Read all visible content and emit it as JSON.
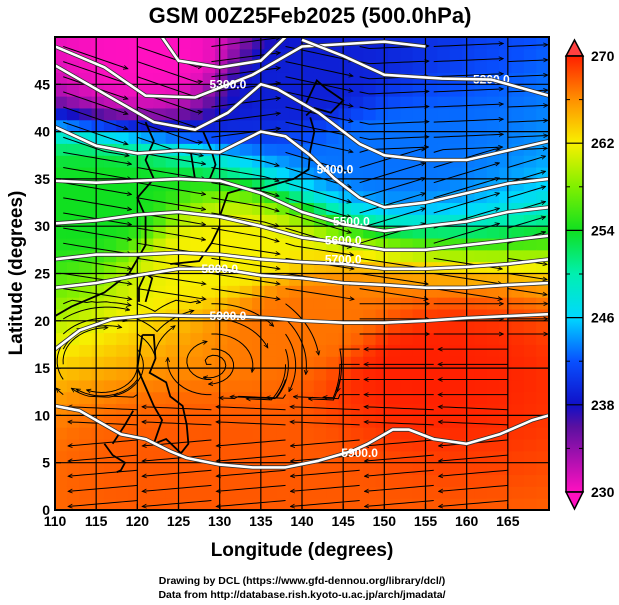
{
  "chart_data": {
    "type": "heatmap",
    "title": "GSM 00Z25Feb2025 (500.0hPa)",
    "xlabel": "Longitude (degrees)",
    "ylabel": "Latitude  (degrees)",
    "xlim": [
      110,
      170
    ],
    "ylim": [
      0,
      50
    ],
    "x_ticks": [
      110,
      115,
      120,
      125,
      130,
      135,
      140,
      145,
      150,
      155,
      160,
      165
    ],
    "y_ticks": [
      0,
      5,
      10,
      15,
      20,
      25,
      30,
      35,
      40,
      45
    ],
    "grid": true,
    "grid_spacing_deg": 5,
    "shaded_field": {
      "description": "temperature (K)",
      "colorbar_ticks": [
        230,
        238,
        246,
        254,
        262,
        270
      ],
      "colorbar_range": [
        230,
        270
      ],
      "colorbar_extend": "both",
      "colorbar_placement": "right",
      "colormap_stops": [
        {
          "value": 230,
          "color": "#ff10c0"
        },
        {
          "value": 236,
          "color": "#5a10a0"
        },
        {
          "value": 238,
          "color": "#1010c8"
        },
        {
          "value": 242,
          "color": "#0850ff"
        },
        {
          "value": 246,
          "color": "#00d8ff"
        },
        {
          "value": 250,
          "color": "#00f0b0"
        },
        {
          "value": 254,
          "color": "#10e020"
        },
        {
          "value": 258,
          "color": "#80f000"
        },
        {
          "value": 262,
          "color": "#f8f000"
        },
        {
          "value": 266,
          "color": "#ff9000"
        },
        {
          "value": 270,
          "color": "#ff2000"
        }
      ],
      "extend_low_color": "#ff10c0",
      "extend_high_color": "#ff4040",
      "approx_field": [
        {
          "lat": 48,
          "lon": 122,
          "value": 230
        },
        {
          "lat": 45,
          "lon": 140,
          "value": 239
        },
        {
          "lat": 38,
          "lon": 150,
          "value": 243
        },
        {
          "lat": 32,
          "lon": 115,
          "value": 254
        },
        {
          "lat": 27,
          "lon": 130,
          "value": 262
        },
        {
          "lat": 20,
          "lon": 140,
          "value": 267
        },
        {
          "lat": 15,
          "lon": 155,
          "value": 270
        },
        {
          "lat": 5,
          "lon": 130,
          "value": 268
        }
      ]
    },
    "contour_field": {
      "description": "geopotential height (m)",
      "interval": 100,
      "color": "#ffffff",
      "lines": [
        {
          "level": 5100,
          "label": "",
          "points": [
            [
              123,
              50
            ],
            [
              125,
              47.5
            ],
            [
              130,
              46.8
            ],
            [
              135,
              47.5
            ],
            [
              138,
              50
            ]
          ]
        },
        {
          "level": 5200,
          "label": "5200.0",
          "label_at": [
            163,
            45.5
          ],
          "points": [
            [
              110,
              49
            ],
            [
              116,
              46.8
            ],
            [
              121,
              43.8
            ],
            [
              127,
              43.6
            ],
            [
              134,
              46
            ],
            [
              140,
              49
            ],
            [
              150,
              49.5
            ],
            [
              155,
              49
            ]
          ]
        },
        {
          "level": 5200,
          "label": "5200.0",
          "points": [
            [
              140,
              49.7
            ],
            [
              145,
              48
            ],
            [
              150,
              46
            ],
            [
              157,
              45.6
            ],
            [
              163,
              45.5
            ],
            [
              170,
              43.8
            ]
          ]
        },
        {
          "level": 5300,
          "label": "5300.0",
          "label_at": [
            131,
            45
          ],
          "points": [
            [
              110,
              47
            ],
            [
              114,
              45
            ],
            [
              118,
              43
            ],
            [
              122,
              41
            ],
            [
              127,
              40.2
            ],
            [
              131,
              42
            ],
            [
              135,
              45
            ],
            [
              137,
              44.5
            ],
            [
              142,
              42
            ],
            [
              147,
              38.7
            ],
            [
              150,
              37.5
            ],
            [
              155,
              37
            ],
            [
              160,
              37
            ],
            [
              165,
              38
            ],
            [
              170,
              39
            ]
          ]
        },
        {
          "level": 5400,
          "label": "5400.0",
          "label_at": [
            144,
            36
          ],
          "points": [
            [
              110,
              40.5
            ],
            [
              115,
              38.5
            ],
            [
              120,
              37.7
            ],
            [
              125,
              38
            ],
            [
              130,
              37.8
            ],
            [
              135,
              40
            ],
            [
              138,
              39.5
            ],
            [
              141,
              37.5
            ],
            [
              144,
              35
            ],
            [
              147,
              33
            ],
            [
              150,
              32
            ],
            [
              155,
              32.5
            ],
            [
              160,
              33.5
            ],
            [
              165,
              34.5
            ],
            [
              170,
              35
            ]
          ]
        },
        {
          "level": 5500,
          "label": "5500.0",
          "label_at": [
            146,
            30.5
          ],
          "points": [
            [
              110,
              34.8
            ],
            [
              115,
              34.6
            ],
            [
              120,
              34.8
            ],
            [
              125,
              35
            ],
            [
              130,
              34.8
            ],
            [
              135,
              33.5
            ],
            [
              140,
              31.5
            ],
            [
              145,
              30.2
            ],
            [
              150,
              29.5
            ],
            [
              155,
              30
            ],
            [
              160,
              30.5
            ],
            [
              165,
              31.5
            ],
            [
              170,
              32
            ]
          ]
        },
        {
          "level": 5600,
          "label": "5600.0",
          "label_at": [
            145,
            28.5
          ],
          "points": [
            [
              110,
              30.3
            ],
            [
              115,
              30.6
            ],
            [
              120,
              31.2
            ],
            [
              125,
              31.5
            ],
            [
              130,
              31
            ],
            [
              135,
              30
            ],
            [
              140,
              28.8
            ],
            [
              145,
              28.2
            ],
            [
              150,
              27.5
            ],
            [
              155,
              27.5
            ],
            [
              160,
              28
            ],
            [
              165,
              28.5
            ],
            [
              170,
              29
            ]
          ]
        },
        {
          "level": 5700,
          "label": "5700.0",
          "label_at": [
            145,
            26.5
          ],
          "points": [
            [
              110,
              26.5
            ],
            [
              115,
              27
            ],
            [
              120,
              27
            ],
            [
              125,
              27.2
            ],
            [
              130,
              27
            ],
            [
              135,
              26.5
            ],
            [
              140,
              26.2
            ],
            [
              145,
              26
            ],
            [
              150,
              25.5
            ],
            [
              155,
              25.5
            ],
            [
              160,
              25.7
            ],
            [
              165,
              26
            ],
            [
              170,
              26.5
            ]
          ]
        },
        {
          "level": 5800,
          "label": "5800.0",
          "label_at": [
            130,
            25.5
          ],
          "points": [
            [
              110,
              23.5
            ],
            [
              115,
              24
            ],
            [
              120,
              24.8
            ],
            [
              125,
              25.5
            ],
            [
              130,
              25.5
            ],
            [
              135,
              24.8
            ],
            [
              140,
              24.5
            ],
            [
              145,
              24
            ],
            [
              150,
              23.8
            ],
            [
              155,
              23.5
            ],
            [
              160,
              23.5
            ],
            [
              165,
              23.8
            ],
            [
              170,
              24
            ]
          ]
        },
        {
          "level": 5900,
          "label": "5900.0",
          "label_at": [
            131,
            20.5
          ],
          "points": [
            [
              110,
              17
            ],
            [
              113,
              19
            ],
            [
              117,
              20.2
            ],
            [
              122,
              20.6
            ],
            [
              127,
              20.5
            ],
            [
              131,
              20.5
            ],
            [
              136,
              20.3
            ],
            [
              140,
              20
            ],
            [
              145,
              19.8
            ],
            [
              150,
              19.8
            ],
            [
              155,
              20
            ],
            [
              160,
              20.3
            ],
            [
              165,
              20.5
            ],
            [
              170,
              20.7
            ]
          ]
        },
        {
          "level": 5900,
          "label": "5900.0",
          "label_at": [
            147,
            6
          ],
          "points": [
            [
              110,
              11
            ],
            [
              113,
              10.5
            ],
            [
              116,
              9
            ],
            [
              118,
              8
            ],
            [
              121,
              7.5
            ],
            [
              124,
              6.2
            ],
            [
              126,
              5.5
            ],
            [
              130,
              4.8
            ],
            [
              134,
              4.5
            ],
            [
              138,
              4.5
            ],
            [
              142,
              5.2
            ],
            [
              146,
              6.2
            ],
            [
              148,
              7
            ],
            [
              151,
              8.5
            ],
            [
              153,
              8.5
            ],
            [
              156,
              7.5
            ],
            [
              160,
              7
            ],
            [
              164,
              8
            ],
            [
              168,
              9.5
            ],
            [
              170,
              10
            ]
          ]
        }
      ]
    },
    "vector_field": {
      "description": "streamlines of horizontal wind",
      "style": "black streamlines with arrowheads",
      "features": [
        {
          "type": "westerly jet",
          "lat_range": [
            25,
            50
          ]
        },
        {
          "type": "trough",
          "lat": 37,
          "lon": 142
        },
        {
          "type": "anticyclonic circulation",
          "lat": 15,
          "lon": 129
        },
        {
          "type": "anticyclonic circulation",
          "lat": 15,
          "lon": 116
        },
        {
          "type": "easterlies",
          "lat_range": [
            0,
            15
          ]
        }
      ]
    },
    "coastlines": true,
    "credits": [
      "Drawing by DCL (https://www.gfd-dennou.org/library/dcl/)",
      "Data from http://database.rish.kyoto-u.ac.jp/arch/jmadata/"
    ]
  }
}
